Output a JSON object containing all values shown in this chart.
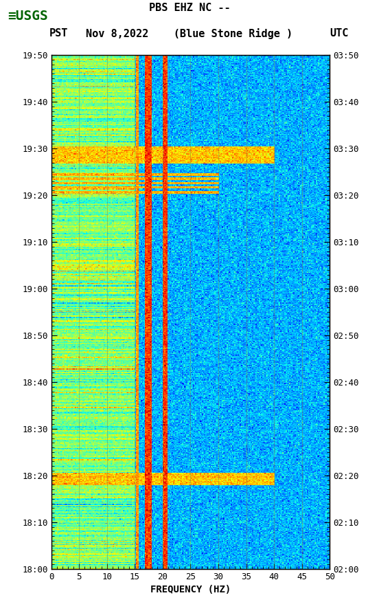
{
  "title_line1": "PBS EHZ NC --",
  "title_line2": "(Blue Stone Ridge )",
  "date_label": "Nov 8,2022",
  "tz_left": "PST",
  "tz_right": "UTC",
  "freq_min": 0,
  "freq_max": 50,
  "freq_ticks": [
    0,
    5,
    10,
    15,
    20,
    25,
    30,
    35,
    40,
    45,
    50
  ],
  "freq_xlabel": "FREQUENCY (HZ)",
  "left_yticks": [
    "18:00",
    "18:10",
    "18:20",
    "18:30",
    "18:40",
    "18:50",
    "19:00",
    "19:10",
    "19:20",
    "19:30",
    "19:40",
    "19:50"
  ],
  "right_yticks": [
    "02:00",
    "02:10",
    "02:20",
    "02:30",
    "02:40",
    "02:50",
    "03:00",
    "03:10",
    "03:20",
    "03:30",
    "03:40",
    "03:50"
  ],
  "fig_bg": "#ffffff",
  "colormap": "jet",
  "vmin": -160,
  "vmax": -60,
  "grid_color": "#808040",
  "grid_alpha": 0.5,
  "title_fontsize": 11,
  "tick_fontsize": 9,
  "label_fontsize": 10,
  "usgs_logo_color": "#006400",
  "fig_width": 5.52,
  "fig_height": 8.92
}
